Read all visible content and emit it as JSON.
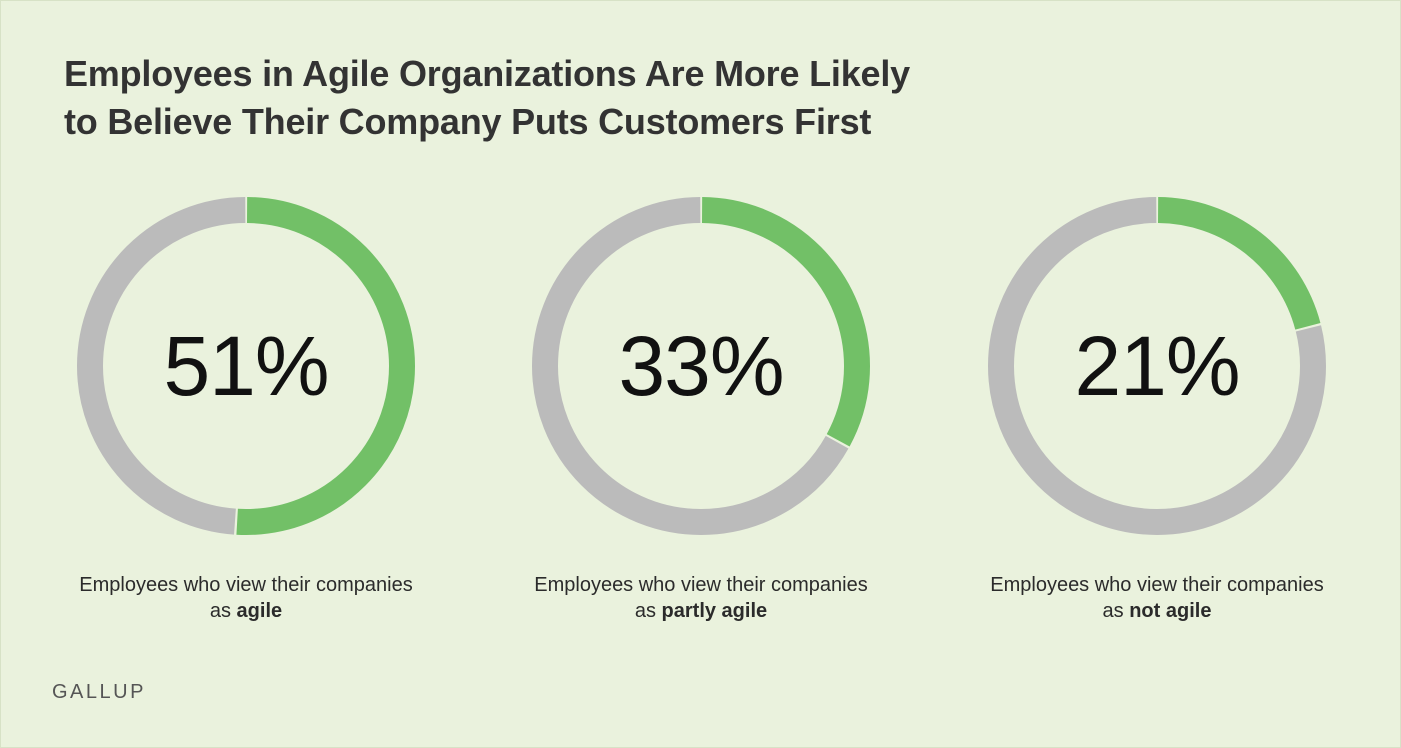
{
  "title_lines": [
    "Employees in Agile Organizations Are More Likely",
    "to Believe Their Company Puts Customers First"
  ],
  "logo_text": "GALLUP",
  "colors": {
    "background": "#eaf2dd",
    "highlight": "#72c067",
    "remainder": "#bbbbbb"
  },
  "chart_data": [
    {
      "type": "pie",
      "value_label": "51%",
      "slices": [
        {
          "label": "agile",
          "value": 51,
          "color": "#72c067"
        },
        {
          "label": "remainder",
          "value": 49,
          "color": "#bbbbbb"
        }
      ],
      "caption_prefix": "Employees who view their companies as",
      "caption_bold": "agile"
    },
    {
      "type": "pie",
      "value_label": "33%",
      "slices": [
        {
          "label": "partly agile",
          "value": 33,
          "color": "#72c067"
        },
        {
          "label": "remainder",
          "value": 67,
          "color": "#bbbbbb"
        }
      ],
      "caption_prefix": "Employees who view their companies as",
      "caption_bold": "partly agile"
    },
    {
      "type": "pie",
      "value_label": "21%",
      "slices": [
        {
          "label": "not agile",
          "value": 21,
          "color": "#72c067"
        },
        {
          "label": "remainder",
          "value": 79,
          "color": "#bbbbbb"
        }
      ],
      "caption_prefix": "Employees who view their companies as",
      "caption_bold": "not agile"
    }
  ]
}
